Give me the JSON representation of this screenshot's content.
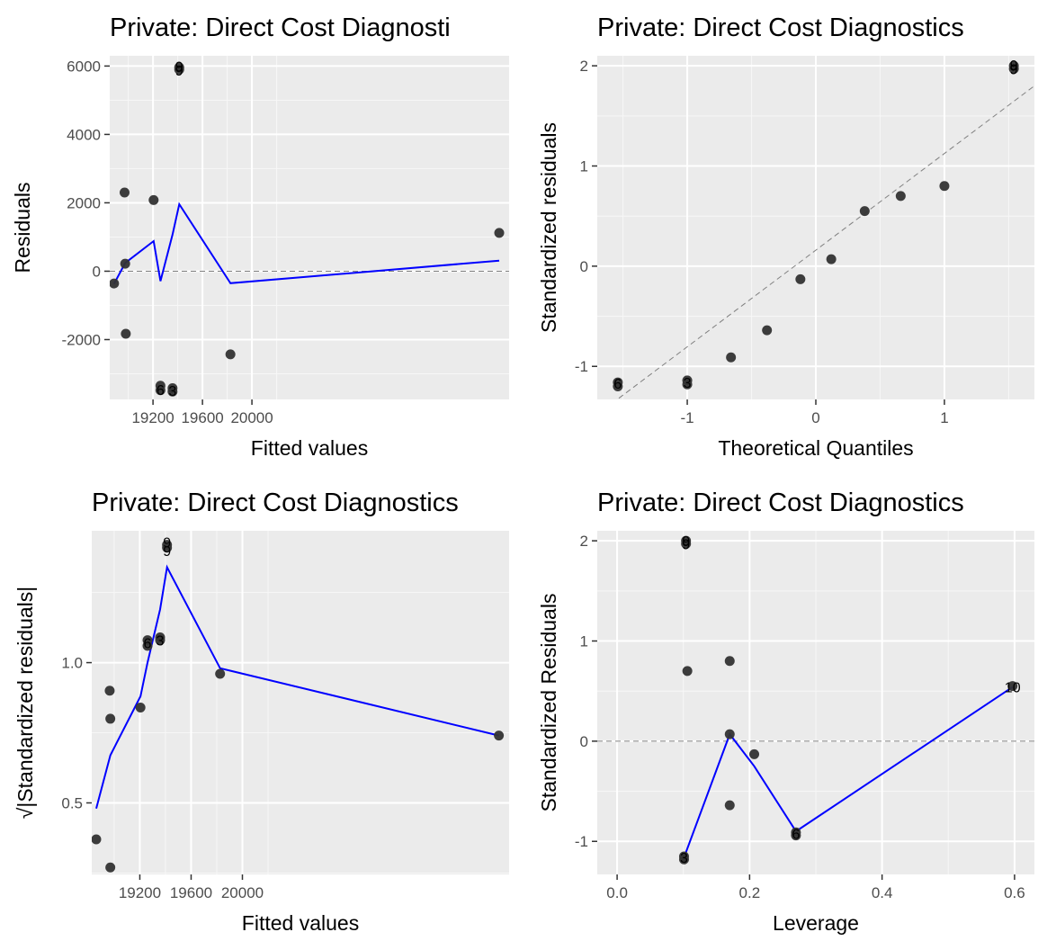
{
  "chart_data": [
    {
      "type": "scatter",
      "title": "Private: Direct Cost Diagnosti",
      "xlabel": "Fitted values",
      "ylabel": "Residuals",
      "xlim": [
        18850,
        22080
      ],
      "ylim": [
        -3750,
        6300
      ],
      "xticks": [
        19200,
        19600,
        20000
      ],
      "xtick_labels": [
        "19200",
        "19600",
        "20000"
      ],
      "yticks": [
        -2000,
        0,
        2000,
        4000,
        6000
      ],
      "ytick_labels": [
        "-2000",
        "0",
        "2000",
        "4000",
        "6000"
      ],
      "grid": true,
      "ref_line": {
        "y": 0
      },
      "points": [
        {
          "x": 18885,
          "y": -360
        },
        {
          "x": 18970,
          "y": 2300
        },
        {
          "x": 18975,
          "y": 220
        },
        {
          "x": 18980,
          "y": -1830
        },
        {
          "x": 19205,
          "y": 2080
        },
        {
          "x": 19260,
          "y": -3350
        },
        {
          "x": 19260,
          "y": -3480
        },
        {
          "x": 19358,
          "y": -3420
        },
        {
          "x": 19358,
          "y": -3520
        },
        {
          "x": 19412,
          "y": 5960
        },
        {
          "x": 19412,
          "y": 5900
        },
        {
          "x": 19826,
          "y": -2430
        },
        {
          "x": 22000,
          "y": 1120
        }
      ],
      "point_labels": [
        {
          "x": 19412,
          "y": 6000,
          "text": "9"
        },
        {
          "x": 19412,
          "y": 5880,
          "text": "9"
        },
        {
          "x": 19260,
          "y": -3460,
          "text": "6"
        },
        {
          "x": 19358,
          "y": -3490,
          "text": "3"
        }
      ],
      "smooth": {
        "x": [
          18885,
          18975,
          19205,
          19260,
          19358,
          19412,
          19826,
          22000
        ],
        "y": [
          -370,
          240,
          880,
          -290,
          1070,
          1960,
          -350,
          310
        ]
      }
    },
    {
      "type": "scatter",
      "title": "Private: Direct Cost Diagnostics",
      "xlabel": "Theoretical Quantiles",
      "ylabel": "Standardized residuals",
      "xlim": [
        -1.7,
        1.7
      ],
      "ylim": [
        -1.33,
        2.1
      ],
      "xticks": [
        -1,
        0,
        1
      ],
      "xtick_labels": [
        "-1",
        "0",
        "1"
      ],
      "yticks": [
        -1,
        0,
        1,
        2
      ],
      "ytick_labels": [
        "-1",
        "0",
        "1",
        "2"
      ],
      "grid": true,
      "ref_line": {
        "x1": -1.7,
        "y1": -1.48,
        "x2": 1.7,
        "y2": 1.8
      },
      "points": [
        {
          "x": -1.54,
          "y": -1.16
        },
        {
          "x": -1.54,
          "y": -1.2
        },
        {
          "x": -1.0,
          "y": -1.14
        },
        {
          "x": -1.0,
          "y": -1.18
        },
        {
          "x": -0.66,
          "y": -0.91
        },
        {
          "x": -0.38,
          "y": -0.64
        },
        {
          "x": -0.12,
          "y": -0.13
        },
        {
          "x": 0.12,
          "y": 0.07
        },
        {
          "x": 0.38,
          "y": 0.55
        },
        {
          "x": 0.66,
          "y": 0.7
        },
        {
          "x": 1.0,
          "y": 0.8
        },
        {
          "x": 1.54,
          "y": 2.0
        },
        {
          "x": 1.54,
          "y": 1.97
        }
      ],
      "point_labels": [
        {
          "x": 1.54,
          "y": 2.01,
          "text": "9"
        },
        {
          "x": 1.54,
          "y": 1.97,
          "text": "9"
        },
        {
          "x": -1.54,
          "y": -1.17,
          "text": "6"
        },
        {
          "x": -1.0,
          "y": -1.16,
          "text": "3"
        }
      ]
    },
    {
      "type": "scatter",
      "title": "Private: Direct Cost Diagnostics",
      "xlabel": "Fitted values",
      "ylabel": "√|Standardized residuals|",
      "xlim": [
        18825,
        22080
      ],
      "ylim": [
        0.245,
        1.47
      ],
      "xticks": [
        19200,
        19600,
        20000
      ],
      "xtick_labels": [
        "19200",
        "19600",
        "20000"
      ],
      "yticks": [
        0.5,
        1.0
      ],
      "ytick_labels": [
        "0.5",
        "1.0"
      ],
      "grid": true,
      "points": [
        {
          "x": 18860,
          "y": 0.37
        },
        {
          "x": 18965,
          "y": 0.9
        },
        {
          "x": 18970,
          "y": 0.8
        },
        {
          "x": 18970,
          "y": 0.27
        },
        {
          "x": 19205,
          "y": 0.84
        },
        {
          "x": 19260,
          "y": 1.08
        },
        {
          "x": 19260,
          "y": 1.06
        },
        {
          "x": 19358,
          "y": 1.09
        },
        {
          "x": 19358,
          "y": 1.08
        },
        {
          "x": 19412,
          "y": 1.42
        },
        {
          "x": 19412,
          "y": 1.41
        },
        {
          "x": 19826,
          "y": 0.96
        },
        {
          "x": 22000,
          "y": 0.74
        }
      ],
      "point_labels": [
        {
          "x": 19412,
          "y": 1.43,
          "text": "9"
        },
        {
          "x": 19412,
          "y": 1.4,
          "text": "9"
        },
        {
          "x": 19260,
          "y": 1.07,
          "text": "6"
        },
        {
          "x": 19358,
          "y": 1.08,
          "text": "3"
        }
      ],
      "smooth": {
        "x": [
          18860,
          18970,
          19205,
          19260,
          19358,
          19412,
          19826,
          22000
        ],
        "y": [
          0.48,
          0.67,
          0.88,
          1.0,
          1.19,
          1.34,
          0.98,
          0.74
        ]
      }
    },
    {
      "type": "scatter",
      "title": "Private: Direct Cost Diagnostics",
      "xlabel": "Leverage",
      "ylabel": "Standardized Residuals",
      "xlim": [
        -0.03,
        0.63
      ],
      "ylim": [
        -1.33,
        2.1
      ],
      "xticks": [
        0.0,
        0.2,
        0.4,
        0.6
      ],
      "xtick_labels": [
        "0.0",
        "0.2",
        "0.4",
        "0.6"
      ],
      "yticks": [
        -1,
        0,
        1,
        2
      ],
      "ytick_labels": [
        "-1",
        "0",
        "1",
        "2"
      ],
      "grid": true,
      "ref_line": {
        "y": 0
      },
      "points": [
        {
          "x": 0.101,
          "y": -1.15
        },
        {
          "x": 0.101,
          "y": -1.18
        },
        {
          "x": 0.104,
          "y": 2.0
        },
        {
          "x": 0.104,
          "y": 1.97
        },
        {
          "x": 0.106,
          "y": 0.7
        },
        {
          "x": 0.17,
          "y": 0.8
        },
        {
          "x": 0.17,
          "y": 0.07
        },
        {
          "x": 0.17,
          "y": -0.64
        },
        {
          "x": 0.207,
          "y": -0.13
        },
        {
          "x": 0.27,
          "y": -0.91
        },
        {
          "x": 0.27,
          "y": -0.94
        },
        {
          "x": 0.597,
          "y": 0.55
        }
      ],
      "point_labels": [
        {
          "x": 0.104,
          "y": 2.0,
          "text": "9"
        },
        {
          "x": 0.104,
          "y": 1.97,
          "text": "9"
        },
        {
          "x": 0.27,
          "y": -0.92,
          "text": "6"
        },
        {
          "x": 0.101,
          "y": -1.16,
          "text": "3"
        },
        {
          "x": 0.597,
          "y": 0.54,
          "text": "10"
        }
      ],
      "smooth": {
        "x": [
          0.101,
          0.17,
          0.207,
          0.27,
          0.597
        ],
        "y": [
          -1.16,
          0.07,
          -0.25,
          -0.9,
          0.54
        ]
      }
    }
  ]
}
